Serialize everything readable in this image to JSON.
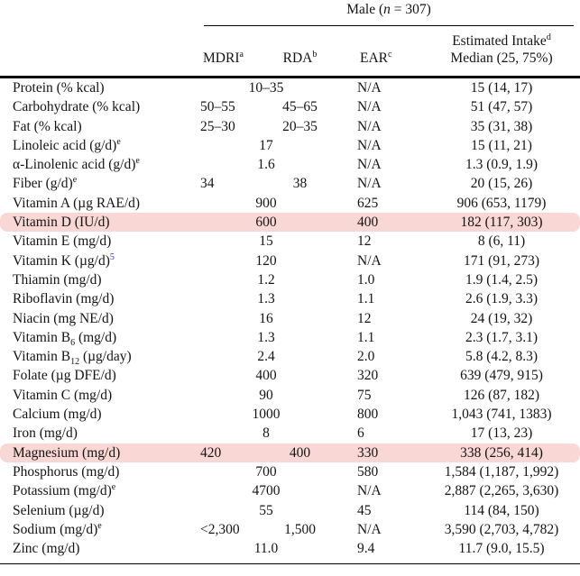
{
  "title": {
    "prefix": "Male (",
    "n_symbol": "n",
    "suffix": " = 307)"
  },
  "columns": {
    "mdri": {
      "label": "MDRI",
      "sup": "a"
    },
    "rda": {
      "label": "RDA",
      "sup": "b"
    },
    "ear": {
      "label": "EAR",
      "sup": "c"
    },
    "intake": {
      "line1": "Estimated Intake",
      "line1_sup": "d",
      "line2": "Median (25, 75%)"
    }
  },
  "colors": {
    "highlight": "#f9d7d5",
    "link": "#2b2fd6",
    "text": "#141414",
    "rule": "#000000"
  },
  "rows": [
    {
      "label": [
        {
          "t": "text",
          "v": "Protein (% kcal)"
        }
      ],
      "mdri": "10–35",
      "rda": null,
      "ear": "N/A",
      "intake": "15 (14, 17)",
      "highlight": false
    },
    {
      "label": [
        {
          "t": "text",
          "v": "Carbohydrate (% kcal)"
        }
      ],
      "mdri": "50–55",
      "rda": "45–65",
      "ear": "N/A",
      "intake": "51 (47, 57)",
      "highlight": false
    },
    {
      "label": [
        {
          "t": "text",
          "v": "Fat (% kcal)"
        }
      ],
      "mdri": "25–30",
      "rda": "20–35",
      "ear": "N/A",
      "intake": "35 (31, 38)",
      "highlight": false
    },
    {
      "label": [
        {
          "t": "text",
          "v": "Linoleic acid (g/d)"
        },
        {
          "t": "sup",
          "v": "e"
        }
      ],
      "mdri": "17",
      "rda": null,
      "ear": "N/A",
      "intake": "15 (11, 21)",
      "highlight": false
    },
    {
      "label": [
        {
          "t": "text",
          "v": "α-Linolenic acid (g/d)"
        },
        {
          "t": "sup",
          "v": "e"
        }
      ],
      "mdri": "1.6",
      "rda": null,
      "ear": "N/A",
      "intake": "1.3 (0.9, 1.9)",
      "highlight": false
    },
    {
      "label": [
        {
          "t": "text",
          "v": "Fiber (g/d)"
        },
        {
          "t": "sup",
          "v": "e"
        }
      ],
      "mdri": "34",
      "rda": "38",
      "ear": "N/A",
      "intake": "20 (15, 26)",
      "highlight": false
    },
    {
      "label": [
        {
          "t": "text",
          "v": "Vitamin A (µg RAE/d)"
        }
      ],
      "mdri": "900",
      "rda": null,
      "ear": "625",
      "intake": "906 (653, 1179)",
      "highlight": false
    },
    {
      "label": [
        {
          "t": "text",
          "v": "Vitamin D (IU/d)"
        }
      ],
      "mdri": "600",
      "rda": null,
      "ear": "400",
      "intake": "182 (117, 303)",
      "highlight": true
    },
    {
      "label": [
        {
          "t": "text",
          "v": "Vitamin E (mg/d)"
        }
      ],
      "mdri": "15",
      "rda": null,
      "ear": "12",
      "intake": "8 (6, 11)",
      "highlight": false
    },
    {
      "label": [
        {
          "t": "text",
          "v": "Vitamin K (µg/d)"
        },
        {
          "t": "suplink",
          "v": "5"
        }
      ],
      "mdri": "120",
      "rda": null,
      "ear": "N/A",
      "intake": "171 (91, 273)",
      "highlight": false
    },
    {
      "label": [
        {
          "t": "text",
          "v": "Thiamin (mg/d)"
        }
      ],
      "mdri": "1.2",
      "rda": null,
      "ear": "1.0",
      "intake": "1.9 (1.4, 2.5)",
      "highlight": false
    },
    {
      "label": [
        {
          "t": "text",
          "v": "Riboflavin (mg/d)"
        }
      ],
      "mdri": "1.3",
      "rda": null,
      "ear": "1.1",
      "intake": "2.6 (1.9, 3.3)",
      "highlight": false
    },
    {
      "label": [
        {
          "t": "text",
          "v": "Niacin (mg NE/d)"
        }
      ],
      "mdri": "16",
      "rda": null,
      "ear": "12",
      "intake": "24 (19, 32)",
      "highlight": false
    },
    {
      "label": [
        {
          "t": "text",
          "v": "Vitamin B"
        },
        {
          "t": "sub",
          "v": "6"
        },
        {
          "t": "text",
          "v": " (mg/d)"
        }
      ],
      "mdri": "1.3",
      "rda": null,
      "ear": "1.1",
      "intake": "2.3 (1.7, 3.1)",
      "highlight": false
    },
    {
      "label": [
        {
          "t": "text",
          "v": "Vitamin B"
        },
        {
          "t": "sub",
          "v": "12"
        },
        {
          "t": "text",
          "v": " (µg/day)"
        }
      ],
      "mdri": "2.4",
      "rda": null,
      "ear": "2.0",
      "intake": "5.8 (4.2, 8.3)",
      "highlight": false
    },
    {
      "label": [
        {
          "t": "text",
          "v": "Folate (µg DFE/d)"
        }
      ],
      "mdri": "400",
      "rda": null,
      "ear": "320",
      "intake": "639 (479, 915)",
      "highlight": false
    },
    {
      "label": [
        {
          "t": "text",
          "v": "Vitamin C (mg/d)"
        }
      ],
      "mdri": "90",
      "rda": null,
      "ear": "75",
      "intake": "126 (87, 182)",
      "highlight": false
    },
    {
      "label": [
        {
          "t": "text",
          "v": "Calcium (mg/d)"
        }
      ],
      "mdri": "1000",
      "rda": null,
      "ear": "800",
      "intake": "1,043 (741, 1383)",
      "highlight": false
    },
    {
      "label": [
        {
          "t": "text",
          "v": "Iron (mg/d)"
        }
      ],
      "mdri": "8",
      "rda": null,
      "ear": "6",
      "intake": "17 (13, 23)",
      "highlight": false
    },
    {
      "label": [
        {
          "t": "text",
          "v": "Magnesium (mg/d)"
        }
      ],
      "mdri": "420",
      "rda": "400",
      "ear": "330",
      "intake": "338 (256, 414)",
      "highlight": true
    },
    {
      "label": [
        {
          "t": "text",
          "v": "Phosphorus (mg/d)"
        }
      ],
      "mdri": "700",
      "rda": null,
      "ear": "580",
      "intake": "1,584 (1,187, 1,992)",
      "highlight": false
    },
    {
      "label": [
        {
          "t": "text",
          "v": "Potassium (mg/d)"
        },
        {
          "t": "sup",
          "v": "e"
        }
      ],
      "mdri": "4700",
      "rda": null,
      "ear": "N/A",
      "intake": "2,887 (2,265, 3,630)",
      "highlight": false
    },
    {
      "label": [
        {
          "t": "text",
          "v": "Selenium (µg/d)"
        }
      ],
      "mdri": "55",
      "rda": null,
      "ear": "45",
      "intake": "114 (84, 150)",
      "highlight": false
    },
    {
      "label": [
        {
          "t": "text",
          "v": "Sodium (mg/d)"
        },
        {
          "t": "sup",
          "v": "e"
        }
      ],
      "mdri": "<2,300",
      "rda": "1,500",
      "ear": "N/A",
      "intake": "3,590 (2,703, 4,782)",
      "highlight": false
    },
    {
      "label": [
        {
          "t": "text",
          "v": "Zinc (mg/d)"
        }
      ],
      "mdri": "11.0",
      "rda": null,
      "ear": "9.4",
      "intake": "11.7 (9.0, 15.5)",
      "highlight": false
    }
  ]
}
